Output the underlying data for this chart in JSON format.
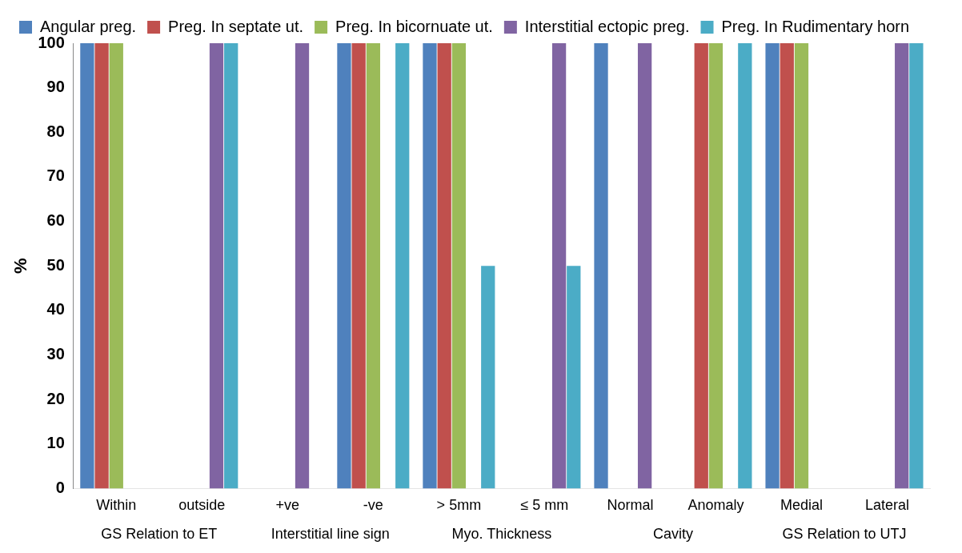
{
  "chart_data": {
    "type": "bar",
    "ylabel": "%",
    "categories": [
      "Within",
      "outside",
      "+ve",
      "-ve",
      "> 5mm",
      "≤ 5 mm",
      "Normal",
      "Anomaly",
      "Medial",
      "Lateral"
    ],
    "series": [
      {
        "name": "Angular preg.",
        "color": "#4f81bd",
        "values": [
          100,
          0,
          0,
          100,
          100,
          0,
          100,
          0,
          100,
          0
        ]
      },
      {
        "name": "Preg. In septate ut.",
        "color": "#c0504d",
        "values": [
          100,
          0,
          0,
          100,
          100,
          0,
          0,
          100,
          100,
          0
        ]
      },
      {
        "name": "Preg. In bicornuate ut.",
        "color": "#9bbb59",
        "values": [
          100,
          0,
          0,
          100,
          100,
          0,
          0,
          100,
          100,
          0
        ]
      },
      {
        "name": "Interstitial ectopic preg.",
        "color": "#8064a2",
        "values": [
          0,
          100,
          100,
          0,
          0,
          100,
          100,
          0,
          0,
          100
        ]
      },
      {
        "name": "Preg. In Rudimentary horn",
        "color": "#4bacc6",
        "values": [
          0,
          100,
          0,
          100,
          50,
          50,
          0,
          100,
          0,
          100
        ]
      }
    ],
    "ylim": [
      0,
      100
    ],
    "yticks": [
      0,
      10,
      20,
      30,
      40,
      50,
      60,
      70,
      80,
      90,
      100
    ],
    "grid": false,
    "legend": "top",
    "annotations": [
      "GS Relation to ET",
      "Interstitial line sign",
      "Myo. Thickness",
      "Cavity",
      "GS Relation to UTJ"
    ]
  }
}
